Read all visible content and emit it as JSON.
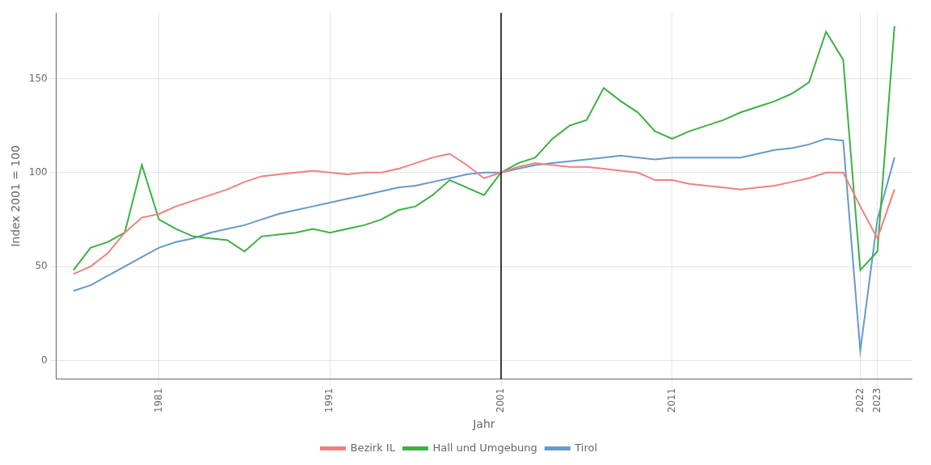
{
  "chart_data": {
    "type": "line",
    "xlabel": "Jahr",
    "ylabel": "Index 2001 = 100",
    "x": [
      1976,
      1977,
      1978,
      1979,
      1980,
      1981,
      1982,
      1983,
      1984,
      1985,
      1986,
      1987,
      1988,
      1989,
      1990,
      1991,
      1992,
      1993,
      1994,
      1995,
      1996,
      1997,
      1998,
      1999,
      2000,
      2001,
      2002,
      2003,
      2004,
      2005,
      2006,
      2007,
      2008,
      2009,
      2010,
      2011,
      2012,
      2013,
      2014,
      2015,
      2016,
      2017,
      2018,
      2019,
      2020,
      2021,
      2022,
      2023,
      2024
    ],
    "series": [
      {
        "name": "Bezirk IL",
        "color": "#F08080",
        "values": [
          46,
          50,
          57,
          68,
          76,
          78,
          82,
          85,
          88,
          91,
          95,
          98,
          99,
          100,
          101,
          100,
          99,
          100,
          100,
          102,
          105,
          108,
          110,
          104,
          97,
          100,
          103,
          105,
          104,
          103,
          103,
          102,
          101,
          100,
          96,
          96,
          94,
          93,
          92,
          91,
          92,
          93,
          95,
          97,
          100,
          100,
          82,
          65,
          91
        ]
      },
      {
        "name": "Hall und Umgebung",
        "color": "#3CB043",
        "values": [
          48,
          60,
          63,
          68,
          104,
          75,
          70,
          66,
          65,
          64,
          58,
          66,
          67,
          68,
          70,
          68,
          70,
          72,
          75,
          80,
          82,
          88,
          96,
          92,
          88,
          100,
          105,
          108,
          118,
          125,
          128,
          145,
          138,
          132,
          122,
          118,
          122,
          125,
          128,
          132,
          135,
          138,
          142,
          148,
          175,
          160,
          48,
          58,
          178
        ]
      },
      {
        "name": "Tirol",
        "color": "#6699CC",
        "values": [
          37,
          40,
          45,
          50,
          55,
          60,
          63,
          65,
          68,
          70,
          72,
          75,
          78,
          80,
          82,
          84,
          86,
          88,
          90,
          92,
          93,
          95,
          97,
          99,
          100,
          100,
          102,
          104,
          105,
          106,
          107,
          108,
          109,
          108,
          107,
          108,
          108,
          108,
          108,
          108,
          110,
          112,
          113,
          115,
          118,
          117,
          5,
          75,
          108
        ]
      }
    ],
    "vlines": [
      2001
    ],
    "xlim": [
      1975,
      2025
    ],
    "xticks": [
      1981,
      1991,
      2001,
      2011,
      2022,
      2023
    ],
    "ylim": [
      -10,
      185
    ],
    "yticks": [
      0,
      50,
      100,
      150
    ],
    "grid": true,
    "legend": "bottom"
  }
}
